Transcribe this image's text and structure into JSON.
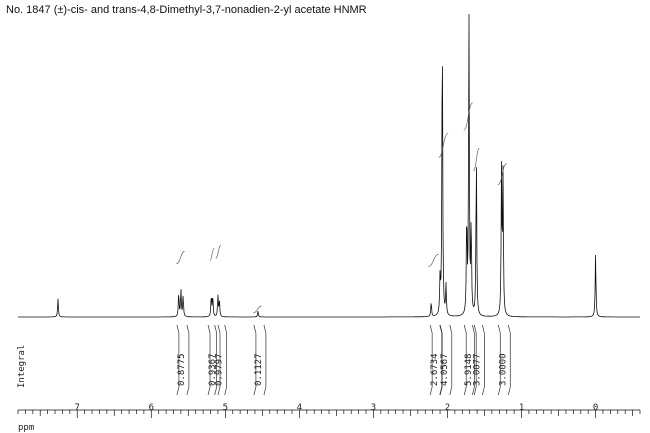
{
  "chart_data": {
    "type": "line",
    "title": "No. 1847 (±)-cis- and trans-4,8-Dimethyl-3,7-nonadien-2-yl acetate HNMR",
    "xlabel": "ppm",
    "x_reversed": true,
    "xlim": [
      7.8,
      -0.6
    ],
    "x_ticks": [
      "7",
      "6",
      "5",
      "4",
      "3",
      "2",
      "1",
      "0"
    ],
    "integral_axis_label": "Integral",
    "series": [
      {
        "values": [
          {
            "x": 7.26,
            "y": 0.06
          },
          {
            "x": 5.63,
            "y": 0.08
          },
          {
            "x": 5.6,
            "y": 0.09
          },
          {
            "x": 5.57,
            "y": 0.07
          },
          {
            "x": 5.19,
            "y": 0.07
          },
          {
            "x": 5.17,
            "y": 0.07
          },
          {
            "x": 5.1,
            "y": 0.07
          },
          {
            "x": 5.08,
            "y": 0.05
          },
          {
            "x": 4.56,
            "y": 0.02
          },
          {
            "x": 2.22,
            "y": 0.05
          },
          {
            "x": 2.1,
            "y": 0.12
          },
          {
            "x": 2.07,
            "y": 1.0
          },
          {
            "x": 2.02,
            "y": 0.1
          },
          {
            "x": 1.74,
            "y": 0.33
          },
          {
            "x": 1.71,
            "y": 0.99
          },
          {
            "x": 1.68,
            "y": 0.3
          },
          {
            "x": 1.61,
            "y": 0.54
          },
          {
            "x": 1.27,
            "y": 0.48
          },
          {
            "x": 1.25,
            "y": 0.46
          },
          {
            "x": 0.0,
            "y": 0.21
          }
        ]
      }
    ],
    "integrals": [
      {
        "x": 5.6,
        "value": "0.8775"
      },
      {
        "x": 5.18,
        "value": "0.9367"
      },
      {
        "x": 5.09,
        "value": "0.9797"
      },
      {
        "x": 4.56,
        "value": "0.1127"
      },
      {
        "x": 2.18,
        "value": "2.6734"
      },
      {
        "x": 2.05,
        "value": "4.0567"
      },
      {
        "x": 1.72,
        "value": "5.9148"
      },
      {
        "x": 1.61,
        "value": "3.0077"
      },
      {
        "x": 1.26,
        "value": "3.0000"
      }
    ],
    "integral_curves": [
      {
        "from": 5.66,
        "to": 5.55,
        "rise": 0.21
      },
      {
        "from": 5.21,
        "to": 5.15,
        "rise": 0.22
      },
      {
        "from": 5.13,
        "to": 5.06,
        "rise": 0.23
      },
      {
        "from": 4.62,
        "to": 4.51,
        "rise": 0.03
      },
      {
        "from": 2.26,
        "to": 2.12,
        "rise": 0.2
      },
      {
        "from": 2.12,
        "to": 1.99,
        "rise": 0.6
      },
      {
        "from": 1.78,
        "to": 1.66,
        "rise": 0.7
      },
      {
        "from": 1.65,
        "to": 1.57,
        "rise": 0.55
      },
      {
        "from": 1.32,
        "to": 1.2,
        "rise": 0.5
      }
    ]
  }
}
